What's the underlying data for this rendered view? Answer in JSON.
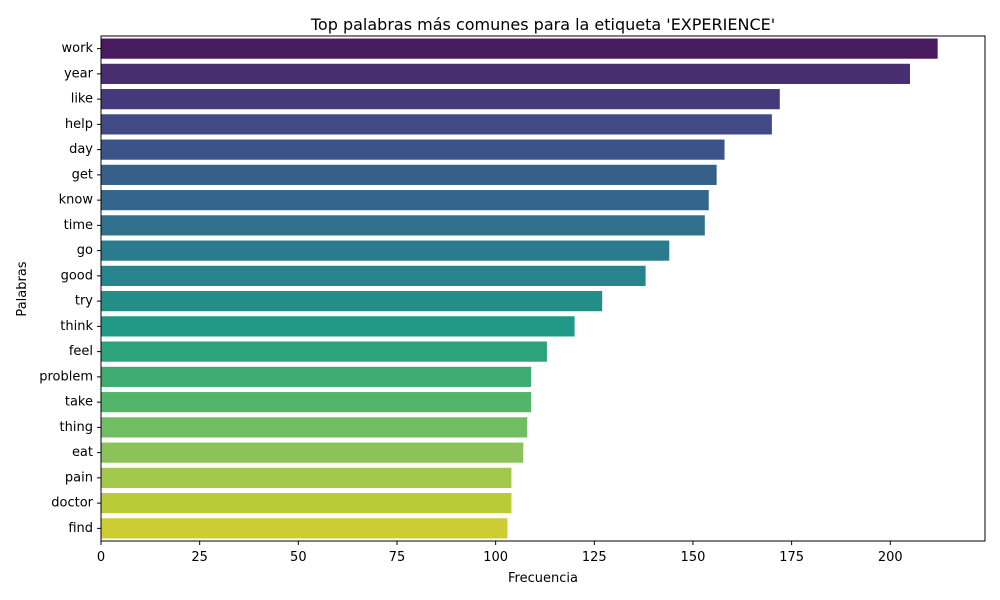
{
  "chart_data": {
    "type": "bar",
    "orientation": "horizontal",
    "title": "Top palabras más comunes para la etiqueta 'EXPERIENCE'",
    "xlabel": "Frecuencia",
    "ylabel": "Palabras",
    "xlim": [
      0,
      224
    ],
    "xticks": [
      0,
      25,
      50,
      75,
      100,
      125,
      150,
      175,
      200
    ],
    "grid": false,
    "legend": "none",
    "palette": "viridis",
    "categories": [
      "work",
      "year",
      "like",
      "help",
      "day",
      "get",
      "know",
      "time",
      "go",
      "good",
      "try",
      "think",
      "feel",
      "problem",
      "take",
      "thing",
      "eat",
      "pain",
      "doctor",
      "find"
    ],
    "values": [
      212,
      205,
      172,
      170,
      158,
      156,
      154,
      153,
      144,
      138,
      127,
      120,
      113,
      109,
      109,
      108,
      107,
      104,
      104,
      103
    ],
    "colors": [
      "#481a5e",
      "#472e6e",
      "#44397a",
      "#414a85",
      "#3c538a",
      "#376089",
      "#33668a",
      "#2f708c",
      "#2a7b8d",
      "#26858c",
      "#228e87",
      "#1f9986",
      "#2da27b",
      "#3eac72",
      "#52b569",
      "#71bd64",
      "#8cc25a",
      "#a2c74d",
      "#bbcb35",
      "#cccd32"
    ]
  }
}
